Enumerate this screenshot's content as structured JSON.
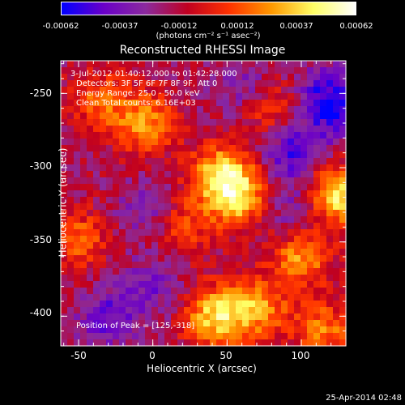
{
  "colorbar": {
    "ticks": [
      "-0.00062",
      "-0.00037",
      "-0.00012",
      "0.00012",
      "0.00037",
      "0.00062"
    ],
    "unit_label": "(photons cm⁻² s⁻¹ asec⁻²)",
    "colormap": [
      "#0000ff",
      "#6a00c8",
      "#8b2a9e",
      "#c00020",
      "#ff3300",
      "#ff9900",
      "#ffff66",
      "#ffffff"
    ]
  },
  "chart_data": {
    "type": "heatmap",
    "title": "Reconstructed RHESSI Image",
    "xlabel": "Heliocentric X (arcsec)",
    "ylabel": "Heliocentric Y (arcsec)",
    "xlim": [
      -62,
      130
    ],
    "ylim": [
      -420,
      -228
    ],
    "xticks": [
      "-50",
      "0",
      "50",
      "100"
    ],
    "yticks": [
      "-250",
      "-300",
      "-350",
      "-400"
    ],
    "xtick_values": [
      -50,
      0,
      50,
      100
    ],
    "ytick_values": [
      -250,
      -300,
      -350,
      -400
    ],
    "vrange": [
      -0.00062,
      0.00062
    ],
    "peak": [
      125,
      -318
    ],
    "annotations": [
      "3-Jul-2012 01:40:12.000 to 01:42:28.000",
      "Detectors: 3F 5F 6F 7F 8F 9F, Att 0",
      "Energy Range: 25.0 - 50.0 keV",
      "Clean     Total counts: 6.16E+03",
      "Position of Peak = [125,-318]"
    ],
    "blobs": [
      {
        "x": 125,
        "y": -318,
        "value": 0.00062
      },
      {
        "x": 45,
        "y": -305,
        "value": 0.00052
      },
      {
        "x": 58,
        "y": -320,
        "value": 0.00048
      },
      {
        "x": -5,
        "y": -270,
        "value": 0.0004
      },
      {
        "x": 42,
        "y": -400,
        "value": 0.00055
      },
      {
        "x": 70,
        "y": -395,
        "value": 0.00042
      },
      {
        "x": 100,
        "y": -360,
        "value": 0.0004
      },
      {
        "x": 115,
        "y": -410,
        "value": 0.00035
      },
      {
        "x": -35,
        "y": -255,
        "value": 0.0003
      },
      {
        "x": -50,
        "y": -348,
        "value": 0.0003
      },
      {
        "x": 20,
        "y": -340,
        "value": 0.00025
      },
      {
        "x": 80,
        "y": -260,
        "value": 0.00025
      },
      {
        "x": 60,
        "y": -245,
        "value": -0.0002
      },
      {
        "x": 115,
        "y": -250,
        "value": -0.0003
      },
      {
        "x": 95,
        "y": -290,
        "value": -0.00035
      },
      {
        "x": -30,
        "y": -400,
        "value": -0.0003
      },
      {
        "x": -5,
        "y": -330,
        "value": -0.0002
      },
      {
        "x": 0,
        "y": -380,
        "value": -0.0002
      },
      {
        "x": 95,
        "y": -330,
        "value": -0.0002
      },
      {
        "x": 125,
        "y": -265,
        "value": -0.00025
      }
    ]
  },
  "timestamp": "25-Apr-2014 02:48"
}
